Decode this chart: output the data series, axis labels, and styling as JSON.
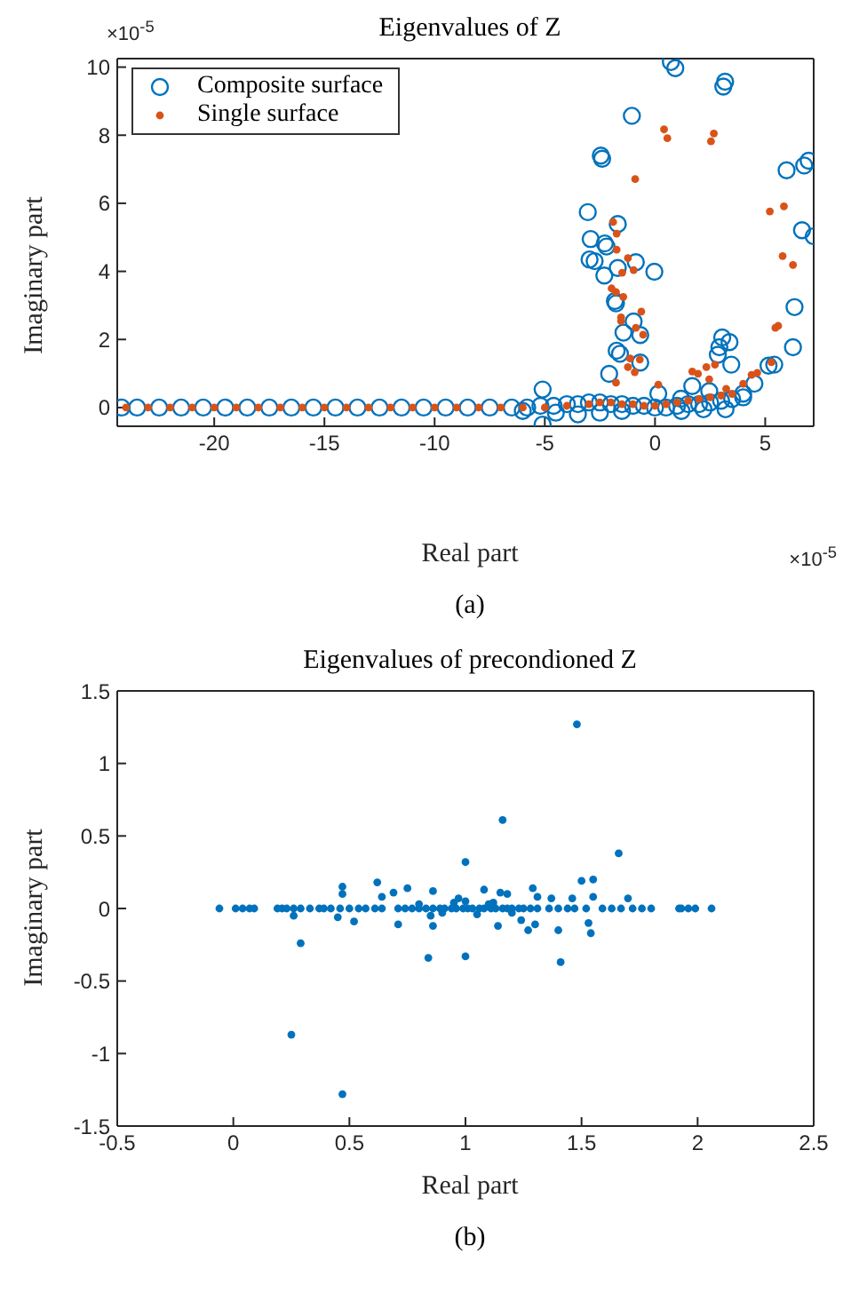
{
  "chart_data": [
    {
      "type": "scatter",
      "title": "Eigenvalues of Z",
      "xlabel": "Real part",
      "ylabel": "Imaginary part",
      "xlim": [
        -24.4,
        7.2
      ],
      "ylim": [
        -0.55,
        10.25
      ],
      "xticks": [
        -20,
        -15,
        -10,
        -5,
        0,
        5
      ],
      "yticks": [
        0,
        2,
        4,
        6,
        8,
        10
      ],
      "legend": "top left",
      "annotations": [
        "×10$^{-5}$",
        "×10$^{-5}$",
        "(a)"
      ],
      "series": [
        {
          "name": "Composite surface",
          "color": "#0072bd",
          "marker": "circle",
          "x": [
            0.72,
            0.92,
            3.18,
            3.1,
            -1.05,
            -2.46,
            -2.4,
            5.97,
            6.77,
            6.97,
            -3.05,
            -1.69,
            6.67,
            7.2,
            -2.92,
            -2.28,
            -2.2,
            -2.97,
            -2.74,
            -0.87,
            -1.69,
            -0.03,
            -2.3,
            -1.82,
            -1.77,
            -0.97,
            -1.43,
            -0.67,
            6.33,
            6.26,
            -1.74,
            -1.59,
            -0.67,
            3.05,
            2.92,
            3.38,
            2.85,
            3.46,
            5.41,
            5.15,
            4.51,
            -2.08,
            -5.1,
            -5.1,
            1.69,
            0.15,
            1.18,
            2.46,
            4.0,
            -24.2,
            -23.5,
            -22.5,
            -21.5,
            -20.5,
            -19.5,
            -18.5,
            -17.5,
            -16.5,
            -15.5,
            -14.5,
            -13.5,
            -12.5,
            -11.5,
            -10.5,
            -9.5,
            -8.5,
            -7.5,
            -6.5,
            -5.8,
            -5.2,
            -4.6,
            -4.0,
            -3.5,
            -3.0,
            -2.5,
            -2.0,
            -1.5,
            -1.0,
            -0.5,
            0.0,
            0.5,
            1.0,
            1.5,
            2.0,
            2.5,
            3.0,
            3.5,
            4.0,
            -6.0,
            -4.5,
            -3.5,
            -2.5,
            -1.5,
            1.2,
            2.2,
            3.2
          ],
          "values": [
            10.15,
            9.97,
            9.57,
            9.43,
            8.57,
            7.4,
            7.31,
            6.97,
            7.11,
            7.25,
            5.74,
            5.39,
            5.21,
            5.03,
            4.95,
            4.82,
            4.73,
            4.35,
            4.3,
            4.27,
            4.1,
            3.99,
            3.88,
            3.13,
            3.06,
            2.53,
            2.2,
            2.13,
            2.95,
            1.77,
            1.67,
            1.58,
            1.32,
            2.06,
            1.77,
            1.92,
            1.55,
            1.26,
            1.26,
            1.23,
            0.7,
            0.99,
            0.53,
            -0.5,
            0.63,
            0.41,
            0.26,
            0.48,
            0.41,
            0.0,
            0.0,
            0.0,
            0.0,
            0.0,
            0.0,
            0.0,
            0.0,
            0.0,
            0.0,
            0.0,
            0.0,
            0.0,
            0.0,
            0.0,
            0.0,
            0.0,
            0.0,
            0.0,
            0.0,
            0.05,
            0.05,
            0.1,
            0.1,
            0.15,
            0.15,
            0.1,
            0.1,
            0.05,
            0.05,
            0.0,
            0.0,
            0.05,
            0.1,
            0.1,
            0.15,
            0.2,
            0.25,
            0.3,
            -0.1,
            -0.15,
            -0.2,
            -0.15,
            -0.1,
            -0.1,
            -0.05,
            -0.05
          ]
        },
        {
          "name": "Single surface",
          "color": "#d95319",
          "x": [
            0.41,
            0.56,
            2.67,
            2.54,
            -0.9,
            5.21,
            5.85,
            -1.9,
            -1.74,
            -1.74,
            -1.23,
            -1.49,
            -0.97,
            5.79,
            6.26,
            -1.97,
            -1.77,
            -1.44,
            -0.62,
            -1.54,
            -1.54,
            -0.87,
            -0.54,
            5.46,
            5.59,
            -1.13,
            -0.69,
            -1.23,
            -0.92,
            -1.77,
            0.15,
            1.69,
            1.95,
            2.33,
            2.72,
            2.46,
            4.38,
            4.64,
            5.28,
            4.0,
            3.23,
            -24.0,
            -23.0,
            -22.0,
            -21.0,
            -20.0,
            -19.0,
            -18.0,
            -17.0,
            -16.0,
            -15.0,
            -14.0,
            -13.0,
            -12.0,
            -11.0,
            -10.0,
            -9.0,
            -8.0,
            -7.0,
            -6.0,
            -5.0,
            -4.0,
            -3.0,
            -2.5,
            -2.0,
            -1.5,
            -1.0,
            -0.5,
            0.0,
            0.5,
            1.0,
            1.5,
            2.0,
            2.5,
            3.0,
            3.5
          ],
          "values": [
            8.17,
            7.91,
            8.05,
            7.82,
            6.71,
            5.76,
            5.91,
            5.45,
            5.11,
            4.64,
            4.39,
            3.96,
            4.04,
            4.45,
            4.19,
            3.5,
            3.39,
            3.25,
            2.82,
            2.65,
            2.54,
            2.34,
            2.14,
            2.34,
            2.4,
            1.44,
            1.41,
            1.19,
            1.04,
            0.73,
            0.67,
            1.06,
            0.99,
            1.19,
            1.26,
            0.83,
            0.96,
            1.02,
            1.33,
            0.7,
            0.55,
            0.0,
            0.0,
            0.0,
            0.0,
            0.0,
            0.0,
            0.0,
            0.0,
            0.0,
            0.0,
            0.0,
            0.0,
            0.0,
            0.0,
            0.0,
            0.0,
            0.0,
            0.0,
            0.0,
            0.0,
            0.05,
            0.1,
            0.15,
            0.15,
            0.1,
            0.1,
            0.05,
            0.05,
            0.1,
            0.15,
            0.2,
            0.25,
            0.3,
            0.35,
            0.4
          ]
        }
      ]
    },
    {
      "type": "scatter",
      "title": "Eigenvalues of precondioned Z",
      "xlabel": "Real part",
      "ylabel": "Imaginary part",
      "xlim": [
        -0.5,
        2.5
      ],
      "ylim": [
        -1.5,
        1.5
      ],
      "xticks": [
        -0.5,
        0,
        0.5,
        1,
        1.5,
        2,
        2.5
      ],
      "yticks": [
        -1.5,
        -1,
        -0.5,
        0,
        0.5,
        1,
        1.5
      ],
      "annotations": [
        "(b)"
      ],
      "series": [
        {
          "color": "#0072bd",
          "x": [
            1.48,
            1.16,
            1.66,
            1.0,
            1.5,
            1.55,
            0.62,
            0.47,
            0.47,
            0.69,
            0.75,
            0.64,
            0.86,
            0.97,
            1.08,
            1.15,
            1.18,
            1.29,
            1.37,
            1.46,
            1.55,
            1.7,
            1.31,
            0.29,
            0.25,
            0.47,
            0.84,
            1.0,
            1.41,
            1.4,
            1.54,
            1.53,
            1.27,
            1.3,
            1.24,
            1.14,
            0.86,
            0.71,
            0.52,
            0.45,
            0.26,
            -0.06,
            0.01,
            0.04,
            0.07,
            0.09,
            0.19,
            0.21,
            0.23,
            0.26,
            0.29,
            0.33,
            0.37,
            0.39,
            0.42,
            0.46,
            0.5,
            0.54,
            0.57,
            0.61,
            0.64,
            0.71,
            0.74,
            0.77,
            0.8,
            0.83,
            0.86,
            0.89,
            0.91,
            0.94,
            0.96,
            0.99,
            1.01,
            1.03,
            1.06,
            1.08,
            1.11,
            1.13,
            1.16,
            1.18,
            1.2,
            1.23,
            1.25,
            1.28,
            1.31,
            1.36,
            1.4,
            1.44,
            1.47,
            1.52,
            1.59,
            1.63,
            1.67,
            1.72,
            1.76,
            1.8,
            1.92,
            1.93,
            1.96,
            1.99,
            2.06,
            0.8,
            0.9,
            0.95,
            1.05,
            1.1,
            1.2,
            0.85,
            1.0,
            1.12
          ],
          "values": [
            1.27,
            0.61,
            0.38,
            0.32,
            0.19,
            0.2,
            0.18,
            0.15,
            0.1,
            0.11,
            0.14,
            0.08,
            0.12,
            0.07,
            0.13,
            0.11,
            0.1,
            0.14,
            0.07,
            0.07,
            0.08,
            0.07,
            0.08,
            -0.24,
            -0.87,
            -1.28,
            -0.34,
            -0.33,
            -0.37,
            -0.15,
            -0.17,
            -0.1,
            -0.15,
            -0.11,
            -0.08,
            -0.12,
            -0.12,
            -0.11,
            -0.09,
            -0.06,
            -0.05,
            0.0,
            0.0,
            0.0,
            0.0,
            0.0,
            0.0,
            0.0,
            0.0,
            0.0,
            0.0,
            0.0,
            0.0,
            0.0,
            0.0,
            0.0,
            0.0,
            0.0,
            0.0,
            0.0,
            0.0,
            0.0,
            0.0,
            0.0,
            0.0,
            0.0,
            0.0,
            0.0,
            0.0,
            0.0,
            0.0,
            0.0,
            0.0,
            0.0,
            0.0,
            0.0,
            0.0,
            0.0,
            0.0,
            0.0,
            0.0,
            0.0,
            0.0,
            0.0,
            0.0,
            0.0,
            0.0,
            0.0,
            0.0,
            0.0,
            0.0,
            0.0,
            0.0,
            0.0,
            0.0,
            0.0,
            0.0,
            0.0,
            0.0,
            0.0,
            0.0,
            0.03,
            -0.03,
            0.04,
            -0.04,
            0.03,
            -0.03,
            -0.05,
            0.05,
            0.04
          ]
        }
      ]
    }
  ]
}
